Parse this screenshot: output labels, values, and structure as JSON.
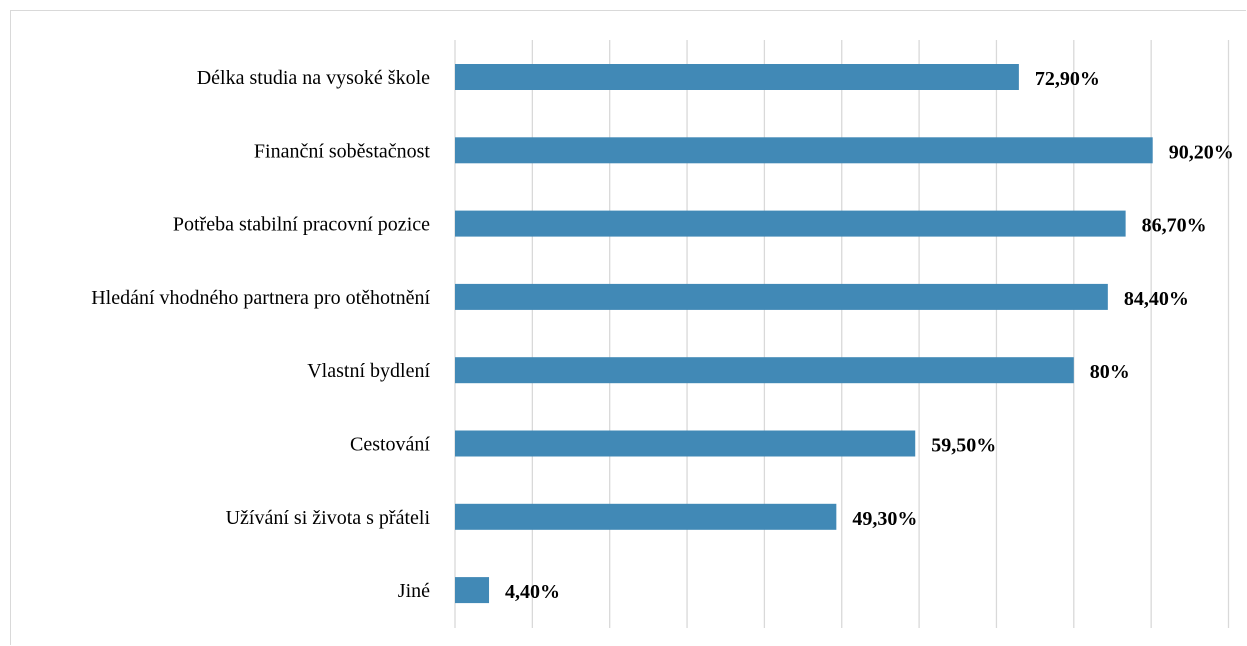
{
  "chart_data": {
    "type": "bar",
    "orientation": "horizontal",
    "title": "",
    "xlabel": "",
    "ylabel": "",
    "xlim": [
      0,
      100
    ],
    "grid": true,
    "legend": "none",
    "bar_color": "#4189b6",
    "categories": [
      "Délka studia na vysoké škole",
      "Finanční soběstačnost",
      "Potřeba stabilní pracovní pozice",
      "Hledání vhodného partnera pro otěhotnění",
      "Vlastní bydlení",
      "Cestování",
      "Užívání si života s přáteli",
      "Jiné"
    ],
    "values": [
      72.9,
      90.2,
      86.7,
      84.4,
      80,
      59.5,
      49.3,
      4.4
    ],
    "data_labels": [
      "72,90%",
      "90,20%",
      "86,70%",
      "84,40%",
      "80%",
      "59,50%",
      "49,30%",
      "4,40%"
    ]
  }
}
